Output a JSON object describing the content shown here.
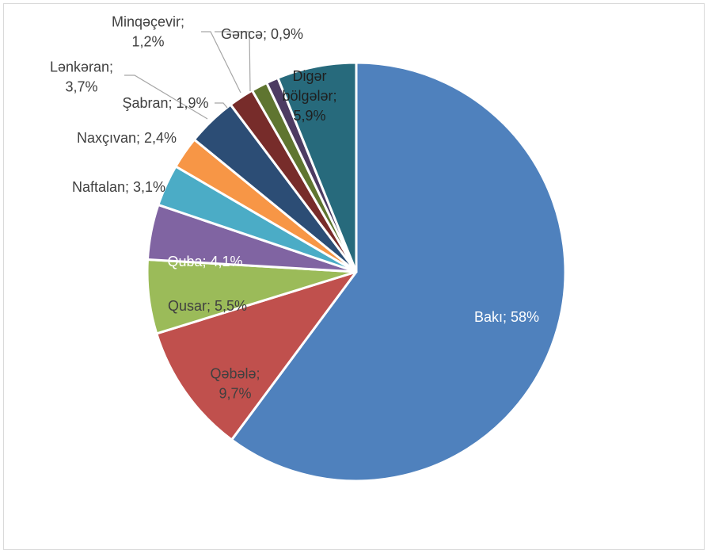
{
  "chart_data": {
    "type": "pie",
    "title": "",
    "slices": [
      {
        "label": "Bakı",
        "value": 58,
        "display": "Bakı; 58%",
        "color": "#4f81bd",
        "label_color": "#ffffff"
      },
      {
        "label": "Qəbələ",
        "value": 9.7,
        "display": "Qəbələ;\n9,7%",
        "color": "#c0504d",
        "label_color": "#404040"
      },
      {
        "label": "Qusar",
        "value": 5.5,
        "display": "Qusar; 5,5%",
        "color": "#9bbb59",
        "label_color": "#404040"
      },
      {
        "label": "Quba",
        "value": 4.1,
        "display": "Quba; 4,1%",
        "color": "#8064a2",
        "label_color": "#ffffff"
      },
      {
        "label": "Naftalan",
        "value": 3.1,
        "display": "Naftalan; 3,1%",
        "color": "#4bacc6",
        "label_color": "#404040"
      },
      {
        "label": "Naxçıvan",
        "value": 2.4,
        "display": "Naxçıvan; 2,4%",
        "color": "#f79646",
        "label_color": "#404040"
      },
      {
        "label": "Lənkəran",
        "value": 3.7,
        "display": "Lənkəran;\n3,7%",
        "color": "#2c4d75",
        "label_color": "#404040"
      },
      {
        "label": "Şabran",
        "value": 1.9,
        "display": "Şabran; 1,9%",
        "color": "#772c2a",
        "label_color": "#404040"
      },
      {
        "label": "Minqəçevir",
        "value": 1.2,
        "display": "Minqəçevir;\n1,2%",
        "color": "#5f7530",
        "label_color": "#404040"
      },
      {
        "label": "Gəncə",
        "value": 0.9,
        "display": "Gəncə; 0,9%",
        "color": "#4d3b62",
        "label_color": "#404040"
      },
      {
        "label": "Digər bölgələr",
        "value": 5.9,
        "display": "Digər\nbölgələr;\n5,9%",
        "color": "#276a7c",
        "label_color": "#1f1f1f"
      }
    ]
  }
}
